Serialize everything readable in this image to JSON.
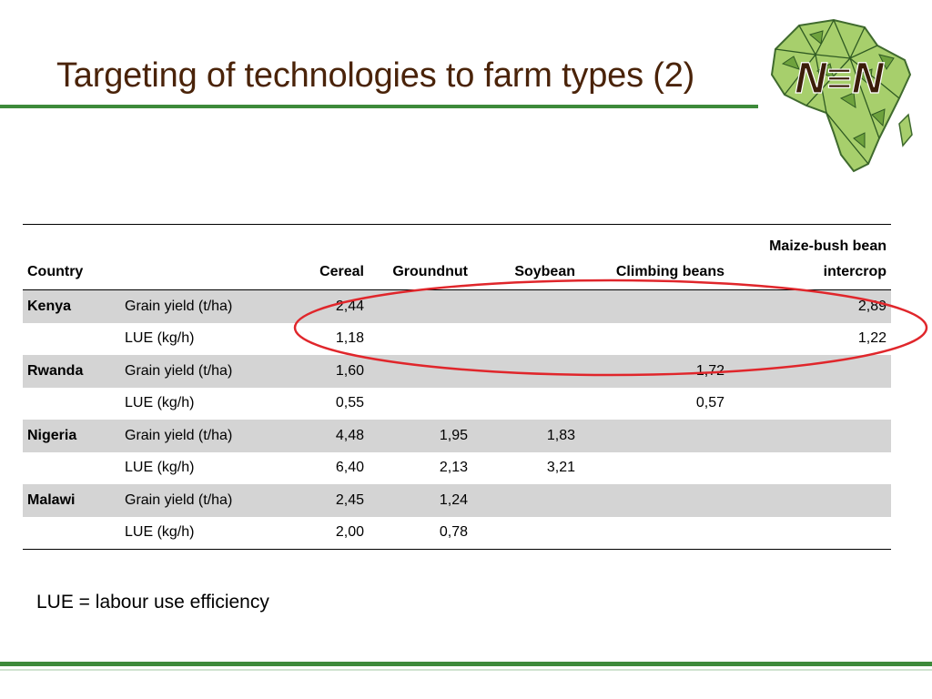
{
  "slide": {
    "title": "Targeting of technologies to farm types (2)",
    "logo_text": "N≡N",
    "footnote": "LUE = labour use efficiency"
  },
  "table": {
    "headers": [
      "Country",
      "",
      "Cereal",
      "Groundnut",
      "Soybean",
      "Climbing beans",
      "Maize-bush bean intercrop"
    ],
    "rows": [
      {
        "country": "Kenya",
        "metric": "Grain yield (t/ha)",
        "cereal": "2,44",
        "groundnut": "",
        "soybean": "",
        "climbing": "",
        "intercrop": "2,89"
      },
      {
        "country": "",
        "metric": "LUE (kg/h)",
        "cereal": "1,18",
        "groundnut": "",
        "soybean": "",
        "climbing": "",
        "intercrop": "1,22"
      },
      {
        "country": "Rwanda",
        "metric": "Grain yield (t/ha)",
        "cereal": "1,60",
        "groundnut": "",
        "soybean": "",
        "climbing": "1,72",
        "intercrop": ""
      },
      {
        "country": "",
        "metric": "LUE (kg/h)",
        "cereal": "0,55",
        "groundnut": "",
        "soybean": "",
        "climbing": "0,57",
        "intercrop": ""
      },
      {
        "country": "Nigeria",
        "metric": "Grain yield (t/ha)",
        "cereal": "4,48",
        "groundnut": "1,95",
        "soybean": "1,83",
        "climbing": "",
        "intercrop": ""
      },
      {
        "country": "",
        "metric": "LUE (kg/h)",
        "cereal": "6,40",
        "groundnut": "2,13",
        "soybean": "3,21",
        "climbing": "",
        "intercrop": ""
      },
      {
        "country": "Malawi",
        "metric": "Grain yield (t/ha)",
        "cereal": "2,45",
        "groundnut": "1,24",
        "soybean": "",
        "climbing": "",
        "intercrop": ""
      },
      {
        "country": "",
        "metric": "LUE (kg/h)",
        "cereal": "2,00",
        "groundnut": "0,78",
        "soybean": "",
        "climbing": "",
        "intercrop": ""
      }
    ]
  },
  "colors": {
    "title": "#4a2309",
    "rule": "#3d8a3a",
    "row_shade": "#d4d4d4",
    "highlight_ellipse": "#e0262b"
  }
}
